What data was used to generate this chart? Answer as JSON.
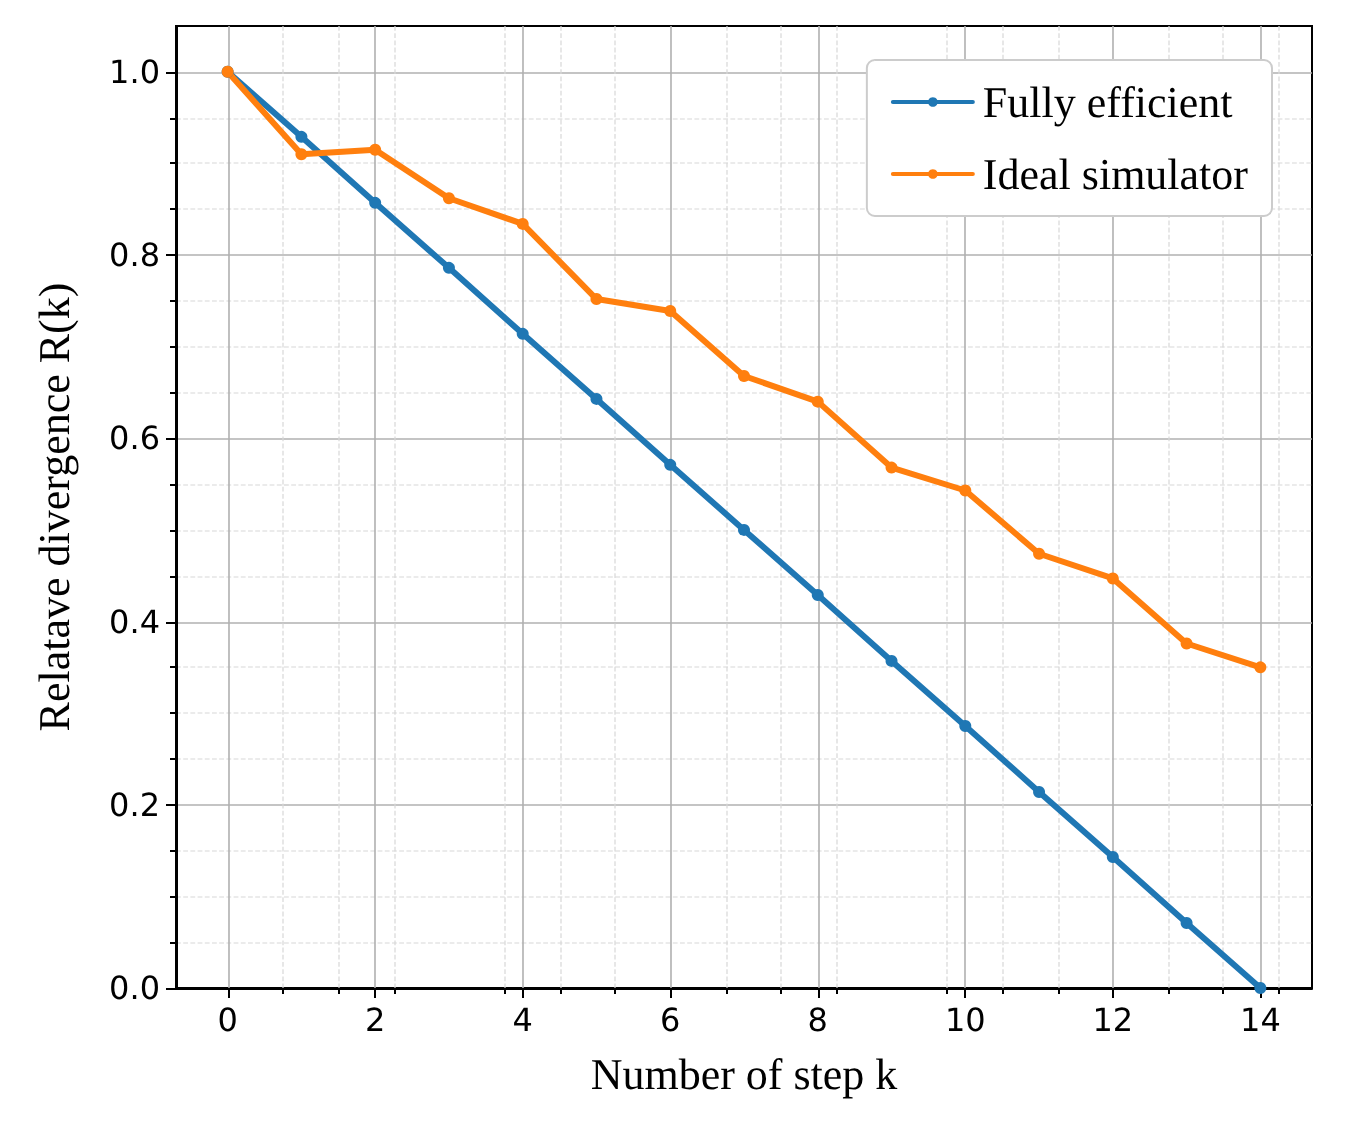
{
  "chart_data": {
    "type": "line",
    "xlabel": "Number of step k",
    "ylabel": "Relatave divergence R(k)",
    "x": [
      0,
      1,
      2,
      3,
      4,
      5,
      6,
      7,
      8,
      9,
      10,
      11,
      12,
      13,
      14
    ],
    "series": [
      {
        "name": "Fully efficient",
        "color": "#1f77b4",
        "values": [
          1,
          0.929,
          0.857,
          0.786,
          0.714,
          0.643,
          0.571,
          0.5,
          0.429,
          0.357,
          0.286,
          0.214,
          0.143,
          0.071,
          0
        ]
      },
      {
        "name": "Ideal simulator",
        "color": "#ff7f0e",
        "values": [
          1,
          0.91,
          0.915,
          0.862,
          0.834,
          0.752,
          0.739,
          0.668,
          0.64,
          0.568,
          0.543,
          0.474,
          0.447,
          0.376,
          0.35
        ]
      }
    ],
    "xlim": [
      -0.7,
      14.7
    ],
    "xticks": [
      0,
      2,
      4,
      6,
      8,
      10,
      12,
      14
    ],
    "ylim": [
      0,
      1.05
    ],
    "yticks": [
      {
        "value": 0,
        "label": "0.0"
      },
      {
        "value": 0.2,
        "label": "0.2"
      },
      {
        "value": 0.4,
        "label": "0.4"
      },
      {
        "value": 0.6,
        "label": "0.6"
      },
      {
        "value": 0.8,
        "label": "0.8"
      },
      {
        "value": 1,
        "label": "1.0"
      }
    ],
    "grid": true,
    "legend": "top right",
    "marker": "circle",
    "line_style": "solid"
  }
}
